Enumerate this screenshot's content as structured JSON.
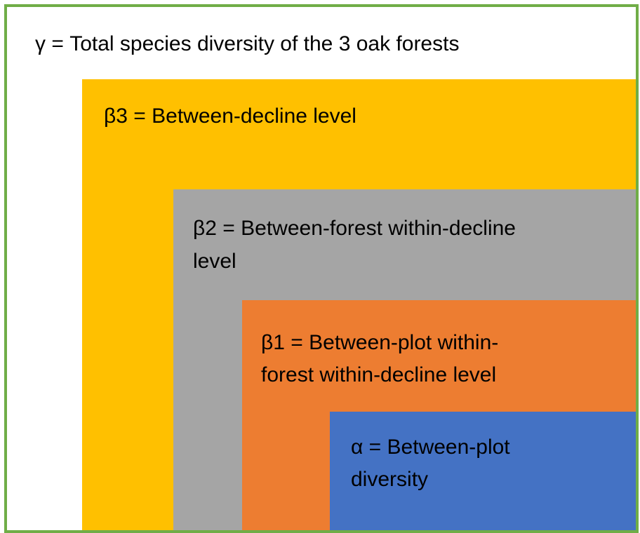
{
  "levels": [
    {
      "lines": [
        "γ = Total species diversity of the 3 oak forests"
      ]
    },
    {
      "lines": [
        "β3 =  Between-decline level"
      ]
    },
    {
      "lines": [
        "β2 =  Between-forest within-decline",
        "level"
      ]
    },
    {
      "lines": [
        "β1 =  Between-plot within-",
        "forest within-decline level"
      ]
    },
    {
      "lines": [
        "α = Between-plot",
        "diversity"
      ]
    }
  ]
}
